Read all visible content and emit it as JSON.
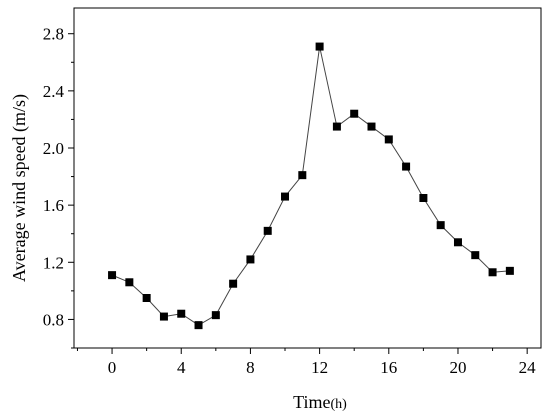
{
  "chart_data": {
    "type": "line",
    "xlabel": "Time",
    "xlabel_unit": "(h)",
    "ylabel": "Average wind speed (m/s)",
    "xlim": [
      -2.2,
      24.8
    ],
    "ylim": [
      0.6,
      2.98
    ],
    "x_ticks": [
      0,
      4,
      8,
      12,
      16,
      20,
      24
    ],
    "x_tick_labels": [
      "0",
      "4",
      "8",
      "12",
      "16",
      "20",
      "24"
    ],
    "y_ticks": [
      0.8,
      1.2,
      1.6,
      2.0,
      2.4,
      2.8
    ],
    "y_tick_labels": [
      "0.8",
      "1.2",
      "1.6",
      "2.0",
      "2.4",
      "2.8"
    ],
    "grid": false,
    "marker": "square",
    "series": [
      {
        "x": [
          0,
          1,
          2,
          3,
          4,
          5,
          6,
          7,
          8,
          9,
          10,
          11,
          12,
          13,
          14,
          15,
          16,
          17,
          18,
          19,
          20,
          21,
          22,
          23
        ],
        "values": [
          1.11,
          1.06,
          0.95,
          0.82,
          0.84,
          0.76,
          0.83,
          1.05,
          1.22,
          1.42,
          1.66,
          1.81,
          2.71,
          2.15,
          2.24,
          2.15,
          2.06,
          1.87,
          1.65,
          1.46,
          1.34,
          1.25,
          1.13,
          1.14
        ]
      }
    ]
  }
}
